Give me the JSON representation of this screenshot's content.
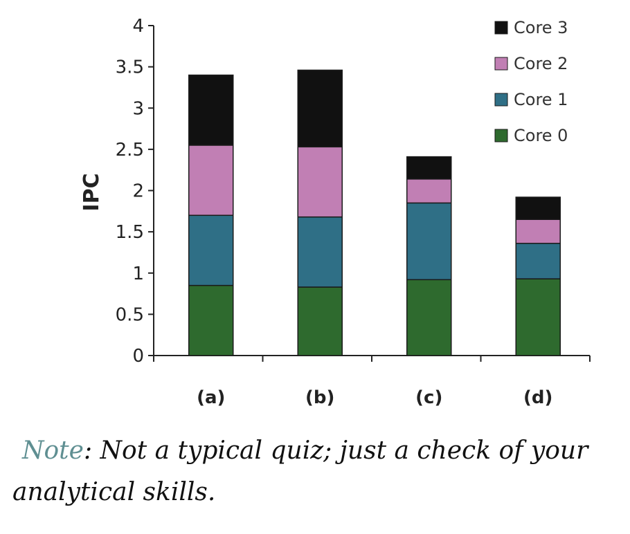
{
  "chart_data": {
    "type": "bar",
    "stacked": true,
    "title": "",
    "xlabel": "",
    "ylabel": "IPC",
    "ylim": [
      0,
      4
    ],
    "yticks": [
      "0",
      "0.5",
      "1",
      "1.5",
      "2",
      "2.5",
      "3",
      "3.5",
      "4"
    ],
    "grid": false,
    "legend_position": "top-right",
    "categories": [
      "(a)",
      "(b)",
      "(c)",
      "(d)"
    ],
    "series": [
      {
        "name": "Core 0",
        "color": "#2e6a2e",
        "values": [
          0.85,
          0.83,
          0.92,
          0.93
        ]
      },
      {
        "name": "Core 1",
        "color": "#2f6f86",
        "values": [
          0.85,
          0.85,
          0.93,
          0.43
        ]
      },
      {
        "name": "Core 2",
        "color": "#c17fb4",
        "values": [
          0.85,
          0.85,
          0.29,
          0.29
        ]
      },
      {
        "name": "Core 3",
        "color": "#111111",
        "values": [
          0.85,
          0.93,
          0.27,
          0.27
        ]
      }
    ]
  },
  "note": {
    "label": "Note",
    "text": ": Not a typical quiz; just a check of your analytical skills."
  }
}
